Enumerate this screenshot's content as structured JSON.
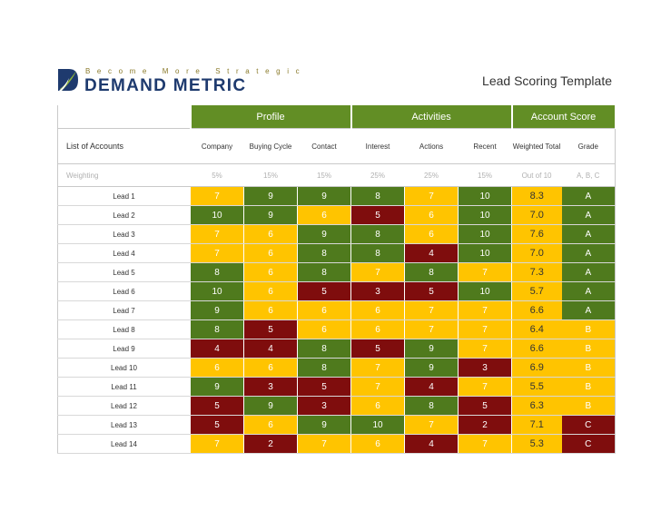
{
  "brand": {
    "tagline": "Become More Strategic",
    "name": "DEMAND METRIC"
  },
  "title": "Lead Scoring Template",
  "groups": {
    "profile": "Profile",
    "activities": "Activities",
    "account_score": "Account Score"
  },
  "columns": {
    "accounts": "List of Accounts",
    "company": "Company",
    "buying_cycle": "Buying Cycle",
    "contact": "Contact",
    "interest": "Interest",
    "actions": "Actions",
    "recent": "Recent",
    "weighted_total": "Weighted Total",
    "grade": "Grade"
  },
  "weighting": {
    "label": "Weighting",
    "values": [
      "5%",
      "15%",
      "15%",
      "25%",
      "25%",
      "15%",
      "Out of 10",
      "A, B, C"
    ]
  },
  "colors": {
    "green": "#4f7a1d",
    "red": "#7f0d0d",
    "yellow": "#ffc400",
    "header_green": "#628e25"
  },
  "leads": [
    {
      "name": "Lead 1",
      "scores": [
        [
          "7",
          "y"
        ],
        [
          "9",
          "g"
        ],
        [
          "9",
          "g"
        ],
        [
          "8",
          "g"
        ],
        [
          "7",
          "y"
        ],
        [
          "10",
          "g"
        ]
      ],
      "total": "8.3",
      "grade": [
        "A",
        "g"
      ]
    },
    {
      "name": "Lead 2",
      "scores": [
        [
          "10",
          "g"
        ],
        [
          "9",
          "g"
        ],
        [
          "6",
          "y"
        ],
        [
          "5",
          "r"
        ],
        [
          "6",
          "y"
        ],
        [
          "10",
          "g"
        ]
      ],
      "total": "7.0",
      "grade": [
        "A",
        "g"
      ]
    },
    {
      "name": "Lead 3",
      "scores": [
        [
          "7",
          "y"
        ],
        [
          "6",
          "y"
        ],
        [
          "9",
          "g"
        ],
        [
          "8",
          "g"
        ],
        [
          "6",
          "y"
        ],
        [
          "10",
          "g"
        ]
      ],
      "total": "7.6",
      "grade": [
        "A",
        "g"
      ]
    },
    {
      "name": "Lead 4",
      "scores": [
        [
          "7",
          "y"
        ],
        [
          "6",
          "y"
        ],
        [
          "8",
          "g"
        ],
        [
          "8",
          "g"
        ],
        [
          "4",
          "r"
        ],
        [
          "10",
          "g"
        ]
      ],
      "total": "7.0",
      "grade": [
        "A",
        "g"
      ]
    },
    {
      "name": "Lead 5",
      "scores": [
        [
          "8",
          "g"
        ],
        [
          "6",
          "y"
        ],
        [
          "8",
          "g"
        ],
        [
          "7",
          "y"
        ],
        [
          "8",
          "g"
        ],
        [
          "7",
          "y"
        ]
      ],
      "total": "7.3",
      "grade": [
        "A",
        "g"
      ]
    },
    {
      "name": "Lead 6",
      "scores": [
        [
          "10",
          "g"
        ],
        [
          "6",
          "y"
        ],
        [
          "5",
          "r"
        ],
        [
          "3",
          "r"
        ],
        [
          "5",
          "r"
        ],
        [
          "10",
          "g"
        ]
      ],
      "total": "5.7",
      "grade": [
        "A",
        "g"
      ]
    },
    {
      "name": "Lead 7",
      "scores": [
        [
          "9",
          "g"
        ],
        [
          "6",
          "y"
        ],
        [
          "6",
          "y"
        ],
        [
          "6",
          "y"
        ],
        [
          "7",
          "y"
        ],
        [
          "7",
          "y"
        ]
      ],
      "total": "6.6",
      "grade": [
        "A",
        "g"
      ]
    },
    {
      "name": "Lead 8",
      "scores": [
        [
          "8",
          "g"
        ],
        [
          "5",
          "r"
        ],
        [
          "6",
          "y"
        ],
        [
          "6",
          "y"
        ],
        [
          "7",
          "y"
        ],
        [
          "7",
          "y"
        ]
      ],
      "total": "6.4",
      "grade": [
        "B",
        "y"
      ]
    },
    {
      "name": "Lead 9",
      "scores": [
        [
          "4",
          "r"
        ],
        [
          "4",
          "r"
        ],
        [
          "8",
          "g"
        ],
        [
          "5",
          "r"
        ],
        [
          "9",
          "g"
        ],
        [
          "7",
          "y"
        ]
      ],
      "total": "6.6",
      "grade": [
        "B",
        "y"
      ]
    },
    {
      "name": "Lead 10",
      "scores": [
        [
          "6",
          "y"
        ],
        [
          "6",
          "y"
        ],
        [
          "8",
          "g"
        ],
        [
          "7",
          "y"
        ],
        [
          "9",
          "g"
        ],
        [
          "3",
          "r"
        ]
      ],
      "total": "6.9",
      "grade": [
        "B",
        "y"
      ]
    },
    {
      "name": "Lead 11",
      "scores": [
        [
          "9",
          "g"
        ],
        [
          "3",
          "r"
        ],
        [
          "5",
          "r"
        ],
        [
          "7",
          "y"
        ],
        [
          "4",
          "r"
        ],
        [
          "7",
          "y"
        ]
      ],
      "total": "5.5",
      "grade": [
        "B",
        "y"
      ]
    },
    {
      "name": "Lead 12",
      "scores": [
        [
          "5",
          "r"
        ],
        [
          "9",
          "g"
        ],
        [
          "3",
          "r"
        ],
        [
          "6",
          "y"
        ],
        [
          "8",
          "g"
        ],
        [
          "5",
          "r"
        ]
      ],
      "total": "6.3",
      "grade": [
        "B",
        "y"
      ]
    },
    {
      "name": "Lead 13",
      "scores": [
        [
          "5",
          "r"
        ],
        [
          "6",
          "y"
        ],
        [
          "9",
          "g"
        ],
        [
          "10",
          "g"
        ],
        [
          "7",
          "y"
        ],
        [
          "2",
          "r"
        ]
      ],
      "total": "7.1",
      "grade": [
        "C",
        "r"
      ]
    },
    {
      "name": "Lead 14",
      "scores": [
        [
          "7",
          "y"
        ],
        [
          "2",
          "r"
        ],
        [
          "7",
          "y"
        ],
        [
          "6",
          "y"
        ],
        [
          "4",
          "r"
        ],
        [
          "7",
          "y"
        ]
      ],
      "total": "5.3",
      "grade": [
        "C",
        "r"
      ]
    }
  ]
}
